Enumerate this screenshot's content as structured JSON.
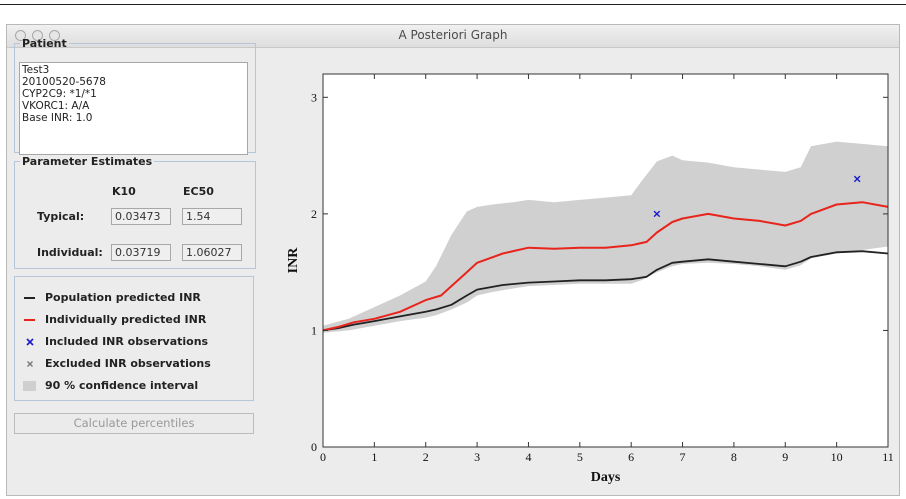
{
  "window": {
    "title": "A Posteriori Graph"
  },
  "patient": {
    "legend": "Patient",
    "info": "Test3\n20100520-5678\nCYP2C9: *1/*1\nVKORC1: A/A\nBase INR: 1.0"
  },
  "params": {
    "legend": "Parameter Estimates",
    "col1": "K10",
    "col2": "EC50",
    "typical_label": "Typical:",
    "typical_k10": "0.03473",
    "typical_ec50": "1.54",
    "individual_label": "Individual:",
    "individual_k10": "0.03719",
    "individual_ec50": "1.06027"
  },
  "legend": {
    "items": [
      {
        "label": "Population predicted INR",
        "symbol": "line",
        "color": "#222222"
      },
      {
        "label": "Individually predicted INR",
        "symbol": "line",
        "color": "#e8241c"
      },
      {
        "label": "Included INR observations",
        "symbol": "cross",
        "color": "#1a1acc"
      },
      {
        "label": "Excluded INR observations",
        "symbol": "cross",
        "color": "#777777"
      },
      {
        "label": "90 % confidence interval",
        "symbol": "fill",
        "color": "#cfcfcf"
      }
    ]
  },
  "buttons": {
    "calculate": "Calculate percentiles"
  },
  "colors": {
    "ci": "#d0d0d0",
    "population": "#222222",
    "individual": "#e8241c",
    "included": "#1a1acc"
  },
  "chart_data": {
    "type": "line",
    "xlabel": "Days",
    "ylabel": "INR",
    "xlim": [
      0,
      11
    ],
    "ylim": [
      0,
      3.2
    ],
    "xticks": [
      0,
      1,
      2,
      3,
      4,
      5,
      6,
      7,
      8,
      9,
      10,
      11
    ],
    "yticks": [
      0,
      1,
      2,
      3
    ],
    "series": [
      {
        "name": "Population predicted INR",
        "x": [
          0,
          0.3,
          0.6,
          1,
          1.5,
          2,
          2.2,
          2.5,
          2.8,
          3,
          3.5,
          4,
          4.5,
          5,
          5.5,
          6,
          6.3,
          6.5,
          6.8,
          7,
          7.5,
          8,
          8.5,
          9,
          9.3,
          9.5,
          10,
          10.5,
          11
        ],
        "y": [
          1.0,
          1.02,
          1.05,
          1.08,
          1.12,
          1.16,
          1.18,
          1.22,
          1.3,
          1.35,
          1.39,
          1.41,
          1.42,
          1.43,
          1.43,
          1.44,
          1.46,
          1.52,
          1.58,
          1.59,
          1.61,
          1.59,
          1.57,
          1.55,
          1.59,
          1.63,
          1.67,
          1.68,
          1.66
        ]
      },
      {
        "name": "Individually predicted INR",
        "x": [
          0,
          0.3,
          0.6,
          1,
          1.5,
          2,
          2.3,
          2.5,
          2.8,
          3,
          3.5,
          4,
          4.5,
          5,
          5.5,
          6,
          6.3,
          6.5,
          6.8,
          7,
          7.5,
          8,
          8.5,
          9,
          9.3,
          9.5,
          10,
          10.5,
          11
        ],
        "y": [
          1.0,
          1.03,
          1.07,
          1.1,
          1.16,
          1.26,
          1.3,
          1.38,
          1.5,
          1.58,
          1.66,
          1.71,
          1.7,
          1.71,
          1.71,
          1.73,
          1.76,
          1.84,
          1.93,
          1.96,
          2.0,
          1.96,
          1.94,
          1.9,
          1.94,
          2.0,
          2.08,
          2.1,
          2.06
        ]
      }
    ],
    "ci": {
      "x": [
        0,
        0.5,
        1,
        1.5,
        2,
        2.2,
        2.5,
        2.8,
        3,
        3.3,
        3.7,
        4,
        4.5,
        5,
        5.5,
        6,
        6.2,
        6.5,
        6.8,
        7,
        7.5,
        8,
        8.5,
        9,
        9.3,
        9.5,
        10,
        10.5,
        11
      ],
      "lower": [
        0.98,
        1.0,
        1.04,
        1.08,
        1.11,
        1.13,
        1.18,
        1.24,
        1.3,
        1.33,
        1.36,
        1.38,
        1.39,
        1.4,
        1.4,
        1.4,
        1.43,
        1.5,
        1.55,
        1.57,
        1.58,
        1.57,
        1.55,
        1.52,
        1.56,
        1.62,
        1.66,
        1.69,
        1.72
      ],
      "upper": [
        1.04,
        1.1,
        1.2,
        1.3,
        1.42,
        1.55,
        1.82,
        2.02,
        2.06,
        2.08,
        2.1,
        2.12,
        2.1,
        2.12,
        2.14,
        2.16,
        2.28,
        2.45,
        2.5,
        2.46,
        2.44,
        2.4,
        2.38,
        2.36,
        2.4,
        2.58,
        2.62,
        2.6,
        2.58
      ]
    },
    "observations": [
      {
        "x": 6.5,
        "y": 2.0
      },
      {
        "x": 10.4,
        "y": 2.3
      }
    ]
  }
}
